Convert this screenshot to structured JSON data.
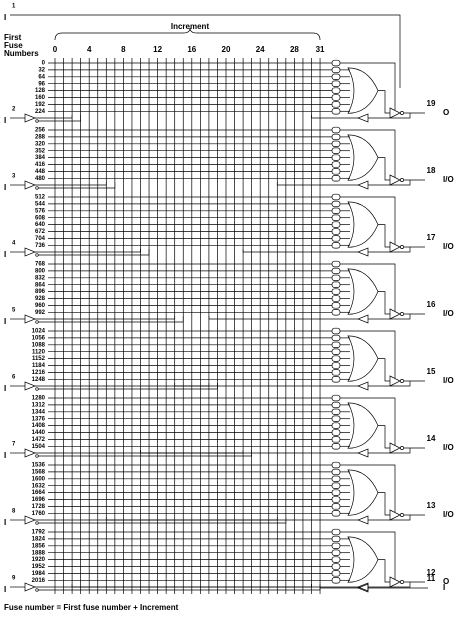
{
  "increment_label": "Increment",
  "increment_ticks": [
    0,
    4,
    8,
    12,
    16,
    20,
    24,
    28,
    31
  ],
  "first_fuse_label": [
    "First",
    "Fuse",
    "Numbers"
  ],
  "fuse_numbers": [
    0,
    32,
    64,
    96,
    128,
    160,
    192,
    224,
    256,
    288,
    320,
    352,
    384,
    416,
    448,
    480,
    512,
    544,
    576,
    608,
    640,
    672,
    704,
    736,
    768,
    800,
    832,
    864,
    896,
    928,
    960,
    992,
    1024,
    1056,
    1088,
    1120,
    1152,
    1184,
    1216,
    1248,
    1280,
    1312,
    1344,
    1376,
    1408,
    1440,
    1472,
    1504,
    1536,
    1568,
    1600,
    1632,
    1664,
    1696,
    1728,
    1760,
    1792,
    1824,
    1856,
    1888,
    1920,
    1952,
    1984,
    2016
  ],
  "inputs": [
    {
      "pin": "1",
      "label": "I"
    },
    {
      "pin": "2",
      "label": "I"
    },
    {
      "pin": "3",
      "label": "I"
    },
    {
      "pin": "4",
      "label": "I"
    },
    {
      "pin": "5",
      "label": "I"
    },
    {
      "pin": "6",
      "label": "I"
    },
    {
      "pin": "7",
      "label": "I"
    },
    {
      "pin": "8",
      "label": "I"
    },
    {
      "pin": "9",
      "label": "I"
    }
  ],
  "outputs": [
    {
      "pin": "19",
      "label": "O"
    },
    {
      "pin": "18",
      "label": "I/O"
    },
    {
      "pin": "17",
      "label": "I/O"
    },
    {
      "pin": "16",
      "label": "I/O"
    },
    {
      "pin": "15",
      "label": "I/O"
    },
    {
      "pin": "14",
      "label": "I/O"
    },
    {
      "pin": "13",
      "label": "I/O"
    },
    {
      "pin": "12",
      "label": "O"
    }
  ],
  "right_input": {
    "pin": "11",
    "label": "I"
  },
  "footer": "Fuse number = First fuse number + Increment"
}
